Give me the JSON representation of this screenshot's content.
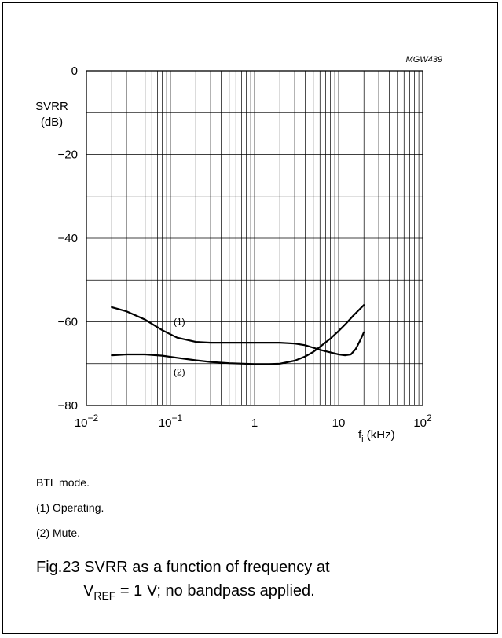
{
  "figure": {
    "id_label": "MGW439",
    "notes": [
      "BTL mode.",
      "(1)  Operating.",
      "(2)  Mute."
    ],
    "caption_line1": "Fig.23  SVRR as a function of frequency at",
    "caption_line2_prefix": "V",
    "caption_line2_sub": "REF",
    "caption_line2_suffix": " = 1 V; no bandpass applied."
  },
  "chart_data": {
    "type": "line",
    "x_scale": "log",
    "xlim": [
      0.01,
      100
    ],
    "ylim": [
      -80,
      0
    ],
    "grid": true,
    "ylabel_line1": "SVRR",
    "ylabel_line2": "(dB)",
    "xlabel_main": "f",
    "xlabel_sub": "i",
    "xlabel_unit": " (kHz)",
    "x_ticks": [
      {
        "value": 0.01,
        "base": "10",
        "exp": "−2"
      },
      {
        "value": 0.1,
        "base": "10",
        "exp": "−1"
      },
      {
        "value": 1,
        "base": "1",
        "exp": ""
      },
      {
        "value": 10,
        "base": "10",
        "exp": ""
      },
      {
        "value": 100,
        "base": "10",
        "exp": "2"
      }
    ],
    "y_ticks": [
      {
        "value": 0,
        "label": "0"
      },
      {
        "value": -20,
        "label": "−20"
      },
      {
        "value": -40,
        "label": "−40"
      },
      {
        "value": -60,
        "label": "−60"
      },
      {
        "value": -80,
        "label": "−80"
      }
    ],
    "series": [
      {
        "name": "(1)",
        "color": "#000000",
        "label_at": {
          "x": 0.1,
          "y": -60
        },
        "x": [
          0.02,
          0.03,
          0.05,
          0.08,
          0.12,
          0.2,
          0.3,
          0.5,
          1,
          2,
          3,
          4,
          5,
          6,
          8,
          10,
          12,
          14,
          16,
          18,
          20
        ],
        "y": [
          -56.5,
          -57.5,
          -59.5,
          -62,
          -63.8,
          -64.8,
          -65,
          -65,
          -65,
          -65,
          -65.2,
          -65.6,
          -66.2,
          -66.7,
          -67.3,
          -67.8,
          -68,
          -67.8,
          -66.5,
          -64.5,
          -62.5
        ]
      },
      {
        "name": "(2)",
        "color": "#000000",
        "label_at": {
          "x": 0.1,
          "y": -72
        },
        "x": [
          0.02,
          0.03,
          0.05,
          0.08,
          0.12,
          0.2,
          0.3,
          0.5,
          1,
          1.5,
          2,
          3,
          4,
          5,
          6,
          8,
          10,
          12,
          15,
          20
        ],
        "y": [
          -68,
          -67.8,
          -67.8,
          -68.1,
          -68.6,
          -69.2,
          -69.6,
          -69.9,
          -70.1,
          -70.1,
          -70,
          -69.3,
          -68.3,
          -67.2,
          -66,
          -64,
          -62.2,
          -60.6,
          -58.5,
          -56
        ]
      }
    ]
  }
}
